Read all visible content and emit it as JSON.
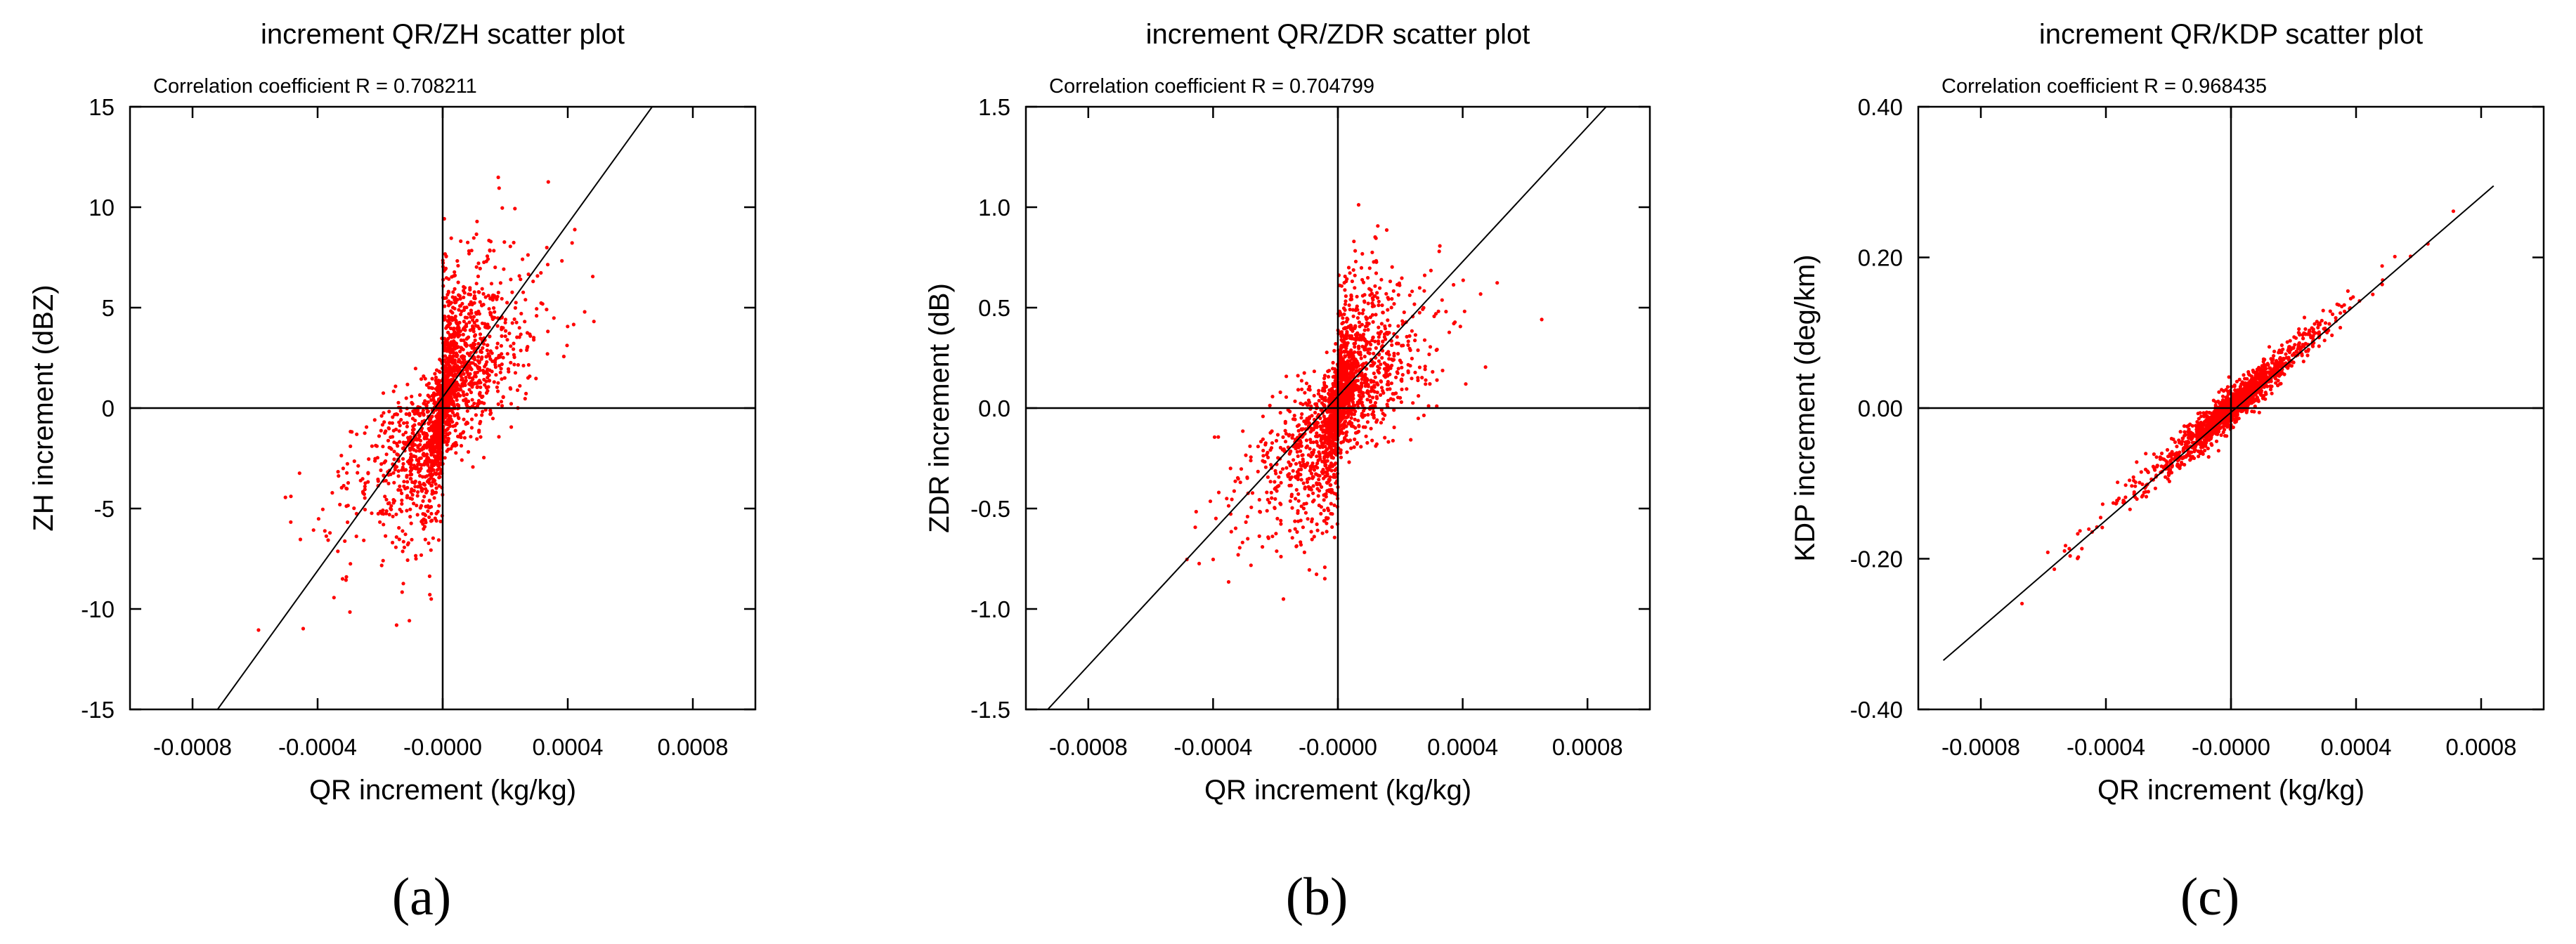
{
  "chart_data": [
    {
      "type": "scatter",
      "panel_label": "(a)",
      "title": "increment QR/ZH scatter plot",
      "subtitle": "Correlation coefficient R = 0.708211",
      "xlabel": "QR increment (kg/kg)",
      "ylabel": "ZH increment (dBZ)",
      "xlim": [
        -0.001,
        0.001
      ],
      "ylim": [
        -15,
        15
      ],
      "xticks": [
        -0.0008,
        -0.0004,
        0,
        0.0004,
        0.0008
      ],
      "xtick_labels": [
        "-0.0008",
        "-0.0004",
        "-0.0000",
        "0.0004",
        "0.0008"
      ],
      "yticks": [
        -15,
        -10,
        -5,
        0,
        5,
        10,
        15
      ],
      "ytick_labels": [
        "-15",
        "-10",
        "-5",
        "0",
        "5",
        "10",
        "15"
      ],
      "fit_line": {
        "x0": -0.00072,
        "y0": -15,
        "x1": 0.00067,
        "y1": 15
      },
      "marker_color": "#ff0000",
      "generator": {
        "seed": 11,
        "n_pos": 820,
        "n_neg": 620,
        "pos_slope": 9000,
        "pos_spread": 3.2,
        "pos_x_scale": 0.00016,
        "neg_slope": 9000,
        "neg_spread": 3.0,
        "neg_x_scale": 0.00018,
        "core_x_sd": 2e-05,
        "core_slope": 60000,
        "core_spread": 2.2,
        "n_core": 500
      }
    },
    {
      "type": "scatter",
      "panel_label": "(b)",
      "title": "increment QR/ZDR scatter plot",
      "subtitle": "Correlation coefficient R = 0.704799",
      "xlabel": "QR increment (kg/kg)",
      "ylabel": "ZDR increment (dB)",
      "xlim": [
        -0.001,
        0.001
      ],
      "ylim": [
        -1.5,
        1.5
      ],
      "xticks": [
        -0.0008,
        -0.0004,
        0,
        0.0004,
        0.0008
      ],
      "xtick_labels": [
        "-0.0008",
        "-0.0004",
        "-0.0000",
        "0.0004",
        "0.0008"
      ],
      "yticks": [
        -1.5,
        -1.0,
        -0.5,
        0,
        0.5,
        1.0,
        1.5
      ],
      "ytick_labels": [
        "-1.5",
        "-1.0",
        "-0.5",
        "0.0",
        "0.5",
        "1.0",
        "1.5"
      ],
      "fit_line": {
        "x0": -0.00093,
        "y0": -1.5,
        "x1": 0.00086,
        "y1": 1.5
      },
      "marker_color": "#ff0000",
      "generator": {
        "seed": 23,
        "n_pos": 820,
        "n_neg": 620,
        "pos_slope": 700,
        "pos_spread": 0.28,
        "pos_x_scale": 0.00016,
        "neg_slope": 700,
        "neg_spread": 0.3,
        "neg_x_scale": 0.00018,
        "core_x_sd": 2e-05,
        "core_slope": 4000,
        "core_spread": 0.2,
        "n_core": 500
      }
    },
    {
      "type": "scatter",
      "panel_label": "(c)",
      "title": "increment QR/KDP scatter plot",
      "subtitle": "Correlation coefficient R = 0.968435",
      "xlabel": "QR increment (kg/kg)",
      "ylabel": "KDP increment (deg/km)",
      "xlim": [
        -0.001,
        0.001
      ],
      "ylim": [
        -0.4,
        0.4
      ],
      "xticks": [
        -0.0008,
        -0.0004,
        0,
        0.0004,
        0.0008
      ],
      "xtick_labels": [
        "-0.0008",
        "-0.0004",
        "-0.0000",
        "0.0004",
        "0.0008"
      ],
      "yticks": [
        -0.4,
        -0.2,
        0,
        0.2,
        0.4
      ],
      "ytick_labels": [
        "-0.40",
        "-0.20",
        "0.00",
        "0.20",
        "0.40"
      ],
      "fit_line": {
        "x0": -0.00092,
        "y0": -0.335,
        "x1": 0.00084,
        "y1": 0.295
      },
      "marker_color": "#ff0000",
      "generator": {
        "seed": 37,
        "n_pos": 700,
        "n_neg": 600,
        "pos_slope": 360,
        "pos_spread": 0.012,
        "pos_x_scale": 0.00018,
        "neg_slope": 360,
        "neg_spread": 0.014,
        "neg_x_scale": 0.0002,
        "core_x_sd": 4e-05,
        "core_slope": 360,
        "core_spread": 0.006,
        "n_core": 500
      }
    }
  ]
}
